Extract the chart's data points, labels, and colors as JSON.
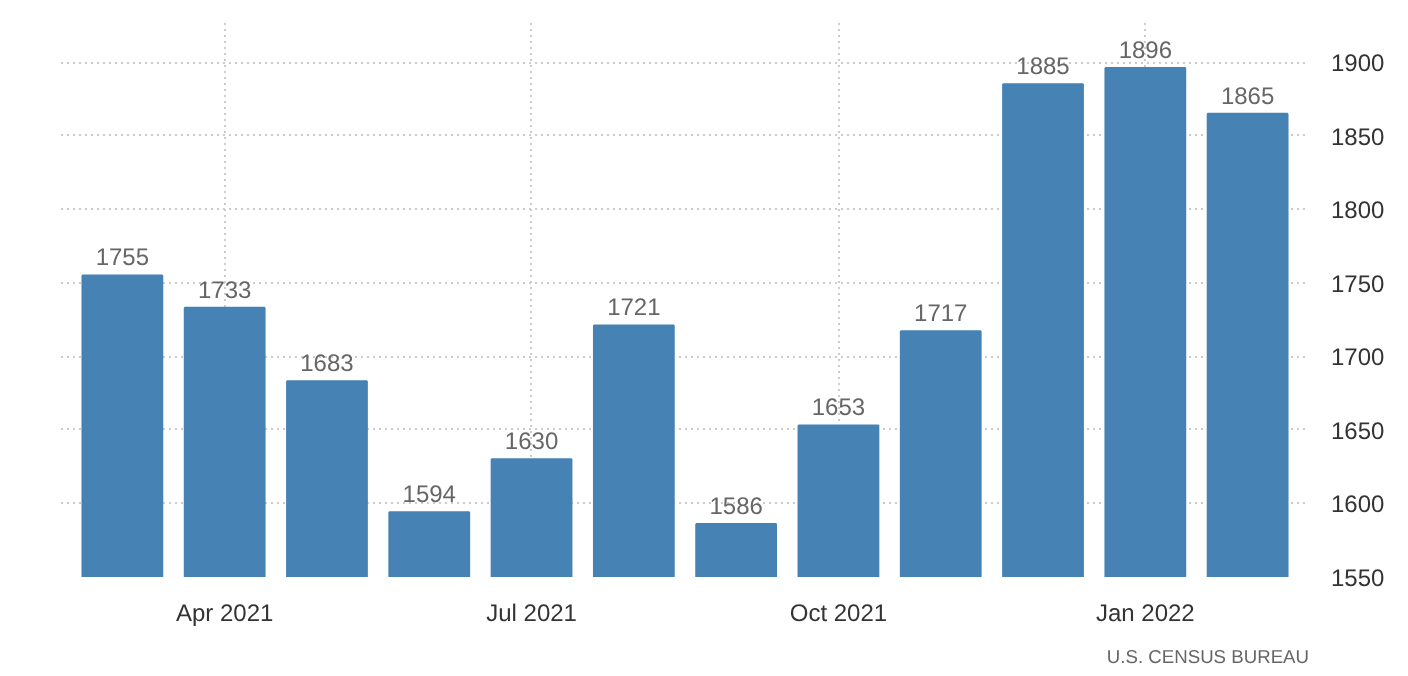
{
  "chart_data": {
    "type": "bar",
    "categories": [
      null,
      "Apr 2021",
      null,
      null,
      "Jul 2021",
      null,
      null,
      "Oct 2021",
      null,
      null,
      "Jan 2022",
      null
    ],
    "values": [
      1755,
      1733,
      1683,
      1594,
      1630,
      1721,
      1586,
      1653,
      1717,
      1885,
      1896,
      1865
    ],
    "color": "#4682b4",
    "ylim": [
      1550,
      1900
    ],
    "yticks": [
      1550,
      1600,
      1650,
      1700,
      1750,
      1800,
      1850,
      1900
    ],
    "grid": true,
    "data_labels": true,
    "annotations": [
      "U.S. CENSUS BUREAU"
    ]
  }
}
